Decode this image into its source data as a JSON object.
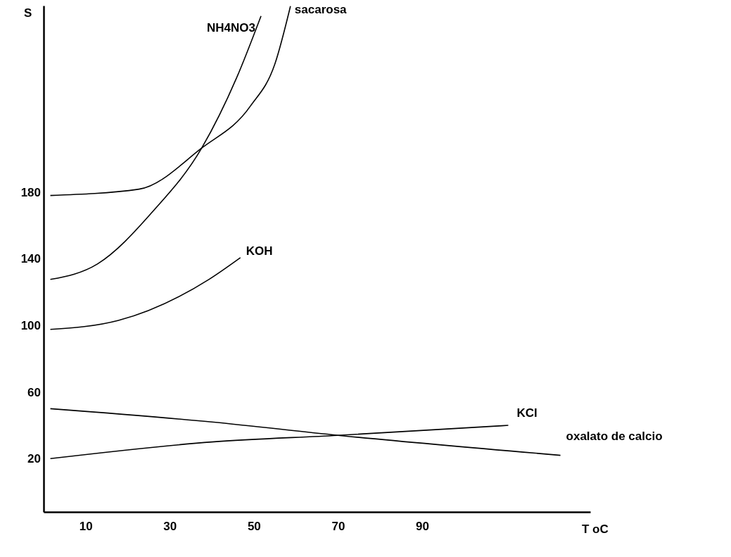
{
  "chart_data": {
    "type": "line",
    "xlabel": "T oC",
    "ylabel": "S",
    "xlim": [
      0,
      130
    ],
    "ylim": [
      -12,
      292
    ],
    "xticks": [
      10,
      30,
      50,
      70,
      90
    ],
    "yticks": [
      20,
      60,
      100,
      140,
      180
    ],
    "grid": false,
    "legend": false,
    "marker": "none",
    "line_style": "solid",
    "series": [
      {
        "name": "NH4NO3",
        "color": "#000000",
        "x": [
          1.6,
          12.8,
          26,
          37.6,
          45.9,
          51.7
        ],
        "values": [
          127.6,
          136.9,
          168.5,
          206.5,
          248.7,
          285.8
        ]
      },
      {
        "name": "sacarosa",
        "color": "#000000",
        "x": [
          1.6,
          22.7,
          37.6,
          49.2,
          55,
          58.7
        ],
        "values": [
          178,
          181.8,
          206.5,
          231.8,
          257,
          291.7
        ]
      },
      {
        "name": "KOH",
        "color": "#000000",
        "x": [
          1.6,
          17.8,
          39.3,
          46.8
        ],
        "values": [
          97.6,
          103,
          127.6,
          140.7
        ]
      },
      {
        "name": "KCl",
        "color": "#000000",
        "x": [
          1.6,
          40,
          70,
          110.5
        ],
        "values": [
          20,
          30,
          34,
          40
        ]
      },
      {
        "name": "oxalato de calcio",
        "color": "#000000",
        "x": [
          1.6,
          40,
          70,
          122.9
        ],
        "values": [
          50,
          42,
          34,
          22
        ]
      }
    ]
  }
}
